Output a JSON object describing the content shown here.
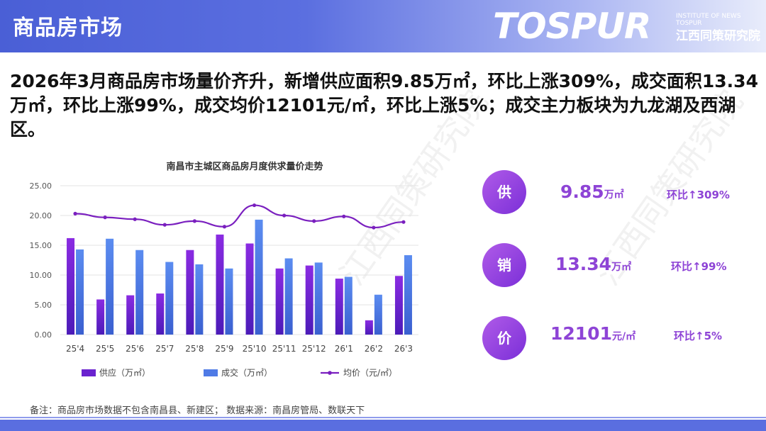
{
  "header": {
    "title": "商品房市场"
  },
  "logo": {
    "main": "TOSPUR",
    "sub_en": "INSTITUTE OF NEWS TOSPUR",
    "sub_cn": "江西同策研究院"
  },
  "headline": "2026年3月商品房市场量价齐升，新增供应面积9.85万㎡，环比上涨309%，成交面积13.34万㎡，环比上涨99%，成交均价12101元/㎡，环比上涨5%；成交主力板块为九龙湖及西湖区。",
  "kpis": [
    {
      "label": "供",
      "value": "9.85",
      "unit": "万㎡",
      "change": "环比↑309%"
    },
    {
      "label": "销",
      "value": "13.34",
      "unit": "万㎡",
      "change": "环比↑99%"
    },
    {
      "label": "价",
      "value": "12101",
      "unit": "元/㎡",
      "change": "环比↑5%"
    }
  ],
  "footnote": "备注：商品房市场数据不包含南昌县、新建区；  数据来源：南昌房管局、数联天下",
  "colors": {
    "supply": "#6a22cf",
    "deal": "#4f7be6",
    "price": "#7a1fbf",
    "accent": "#8e44d6"
  },
  "chart_data": {
    "type": "bar",
    "title": "南昌市主城区商品房月度供求量价走势",
    "categories": [
      "25'4",
      "25'5",
      "25'6",
      "25'7",
      "25'8",
      "25'9",
      "25'10",
      "25'11",
      "25'12",
      "26'1",
      "26'2",
      "26'3"
    ],
    "series": [
      {
        "name": "供应（万㎡）",
        "type": "bar",
        "axis": "left",
        "values": [
          16.2,
          5.9,
          6.6,
          6.9,
          14.2,
          16.8,
          15.3,
          11.1,
          11.6,
          9.4,
          2.4,
          9.85
        ]
      },
      {
        "name": "成交（万㎡）",
        "type": "bar",
        "axis": "left",
        "values": [
          14.3,
          16.1,
          14.2,
          12.2,
          11.8,
          11.1,
          19.3,
          12.8,
          12.1,
          9.7,
          6.7,
          13.34
        ]
      },
      {
        "name": "均价（元/㎡）",
        "type": "line",
        "axis": "right",
        "values": [
          13000,
          12600,
          12400,
          11800,
          12200,
          11600,
          13900,
          12800,
          12200,
          12700,
          11500,
          12101
        ]
      }
    ],
    "left_axis": {
      "min": 0,
      "max": 25,
      "ticks": [
        "0.00",
        "5.00",
        "10.00",
        "15.00",
        "20.00",
        "25.00"
      ]
    },
    "right_axis": {
      "min": 0,
      "max": 16000,
      "ticks": [
        "0",
        "2000",
        "4000",
        "6000",
        "8000",
        "10000",
        "12000",
        "14000",
        "16000"
      ]
    },
    "legend": "bottom",
    "grid": true
  }
}
